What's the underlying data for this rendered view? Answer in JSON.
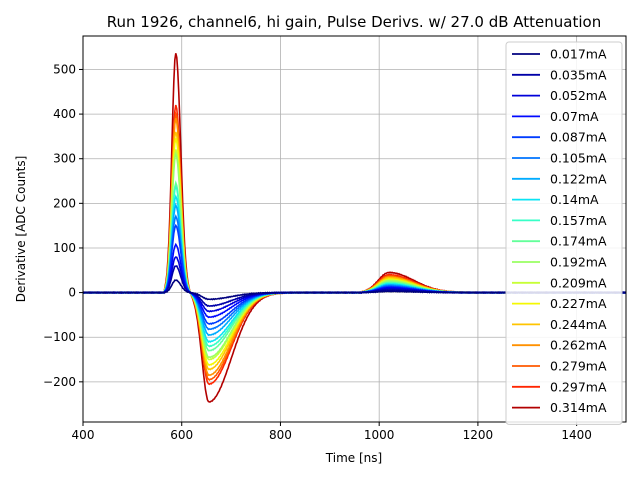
{
  "chart_data": {
    "type": "line",
    "title": "Run 1926, channel6, hi gain, Pulse Derivs. w/ 27.0 dB Attenuation",
    "xlabel": "Time [ns]",
    "ylabel": "Derivative [ADC Counts]",
    "xlim": [
      400,
      1500
    ],
    "ylim": [
      -290,
      575
    ],
    "xticks": [
      400,
      600,
      800,
      1000,
      1200,
      1400
    ],
    "xtick_labels": [
      "400",
      "600",
      "800",
      "1000",
      "1200",
      "1400"
    ],
    "yticks": [
      -200,
      -100,
      0,
      100,
      200,
      300,
      400,
      500
    ],
    "ytick_labels": [
      "−200",
      "−100",
      "0",
      "100",
      "200",
      "300",
      "400",
      "500"
    ],
    "grid": true,
    "legend_position": "right",
    "shape_model": {
      "description": "Each series is a pulse derivative: a sharp positive peak near 588 ns, a negative undershoot near 655 ns that recovers by ~820 ns, and a small late bump near 1020 ns.",
      "peak_time_ns": 588,
      "trough_time_ns": 655,
      "bump_time_ns": 1020
    },
    "series": [
      {
        "name": "0.017mA",
        "color": "#00007f",
        "peak": 28,
        "trough": -15,
        "bump": 3
      },
      {
        "name": "0.035mA",
        "color": "#0000a8",
        "peak": 60,
        "trough": -30,
        "bump": 6
      },
      {
        "name": "0.052mA",
        "color": "#0000da",
        "peak": 80,
        "trough": -42,
        "bump": 9
      },
      {
        "name": "0.07mA",
        "color": "#0008ff",
        "peak": 107,
        "trough": -55,
        "bump": 11
      },
      {
        "name": "0.087mA",
        "color": "#003cff",
        "peak": 150,
        "trough": -70,
        "bump": 13
      },
      {
        "name": "0.105mA",
        "color": "#0074ff",
        "peak": 170,
        "trough": -82,
        "bump": 15
      },
      {
        "name": "0.122mA",
        "color": "#00acff",
        "peak": 195,
        "trough": -95,
        "bump": 17
      },
      {
        "name": "0.14mA",
        "color": "#0ae4f4",
        "peak": 215,
        "trough": -110,
        "bump": 19
      },
      {
        "name": "0.157mA",
        "color": "#37ffc7",
        "peak": 237,
        "trough": -120,
        "bump": 21
      },
      {
        "name": "0.174mA",
        "color": "#63ff9a",
        "peak": 245,
        "trough": -130,
        "bump": 23
      },
      {
        "name": "0.192mA",
        "color": "#9aff63",
        "peak": 310,
        "trough": -145,
        "bump": 26
      },
      {
        "name": "0.209mA",
        "color": "#c7ff37",
        "peak": 320,
        "trough": -150,
        "bump": 28
      },
      {
        "name": "0.227mA",
        "color": "#f4f802",
        "peak": 345,
        "trough": -162,
        "bump": 30
      },
      {
        "name": "0.244mA",
        "color": "#ffc400",
        "peak": 360,
        "trough": -172,
        "bump": 33
      },
      {
        "name": "0.262mA",
        "color": "#ff9100",
        "peak": 390,
        "trough": -185,
        "bump": 35
      },
      {
        "name": "0.279mA",
        "color": "#ff5900",
        "peak": 400,
        "trough": -195,
        "bump": 37
      },
      {
        "name": "0.297mA",
        "color": "#ff2500",
        "peak": 420,
        "trough": -205,
        "bump": 40
      },
      {
        "name": "0.314mA",
        "color": "#b20000",
        "peak": 537,
        "trough": -245,
        "bump": 45
      }
    ]
  }
}
